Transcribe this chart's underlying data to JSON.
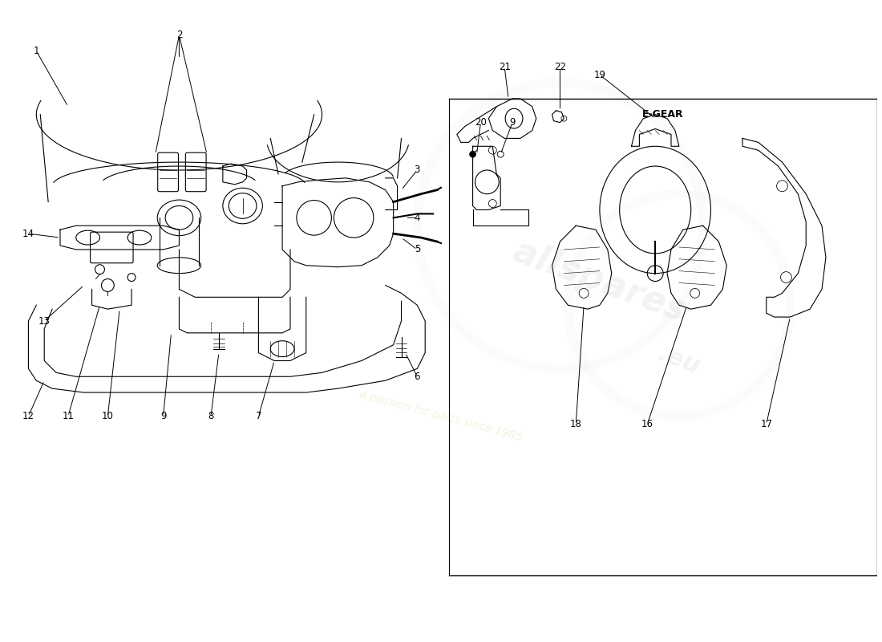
{
  "bg_color": "#ffffff",
  "line_color": "#000000",
  "egear_label": "E-GEAR",
  "watermark_text": "a passion for parts since 1985"
}
